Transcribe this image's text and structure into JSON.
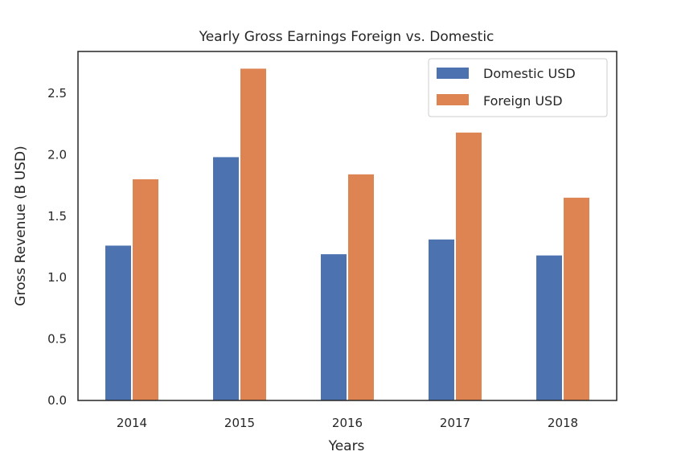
{
  "chart_data": {
    "type": "bar",
    "title": "Yearly Gross Earnings Foreign vs. Domestic",
    "xlabel": "Years",
    "ylabel": "Gross Revenue (B USD)",
    "categories": [
      "2014",
      "2015",
      "2016",
      "2017",
      "2018"
    ],
    "series": [
      {
        "name": "Domestic USD",
        "color": "#4C72B0",
        "values": [
          1.26,
          1.98,
          1.19,
          1.31,
          1.18
        ]
      },
      {
        "name": "Foreign USD",
        "color": "#DD8452",
        "values": [
          1.8,
          2.7,
          1.84,
          2.18,
          1.65
        ]
      }
    ],
    "ylim": [
      0,
      2.84
    ],
    "yticks": [
      "0.0",
      "0.5",
      "1.0",
      "1.5",
      "2.0",
      "2.5"
    ],
    "grid": false,
    "legend_position": "top-right"
  }
}
